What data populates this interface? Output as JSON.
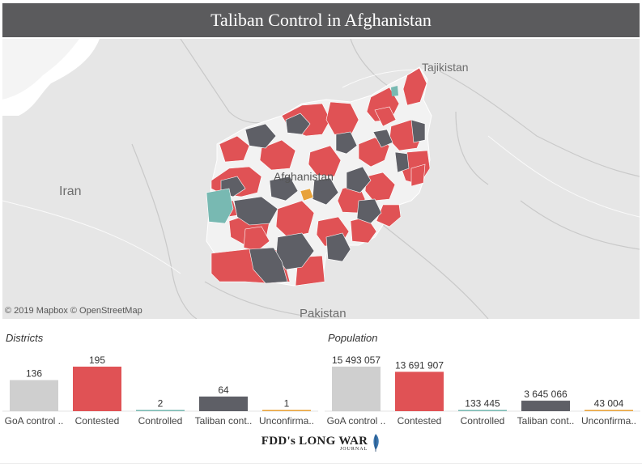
{
  "title": "Taliban Control in Afghanistan",
  "map": {
    "labels": {
      "tajikistan": "Tajikistan",
      "afghanistan": "Afghanistan",
      "iran": "Iran",
      "pakistan": "Pakistan"
    },
    "attribution": "© 2019 Mapbox  © OpenStreetMap"
  },
  "colors": {
    "goa": "#cfcfcf",
    "contested": "#e05255",
    "controlled": "#78b9b2",
    "taliban": "#5e5f66",
    "unconfirmed": "#e8a23a",
    "title_bg": "#5b5b5d"
  },
  "districts_label": "Districts",
  "population_label": "Population",
  "chart_data": [
    {
      "type": "bar",
      "title": "Districts",
      "categories": [
        "GoA control ..",
        "Contested",
        "Controlled",
        "Taliban cont..",
        "Unconfirma.."
      ],
      "values": [
        136,
        195,
        2,
        64,
        1
      ],
      "value_labels": [
        "136",
        "195",
        "2",
        "64",
        "1"
      ],
      "colors": [
        "#cfcfcf",
        "#e05255",
        "#78b9b2",
        "#5e5f66",
        "#e8a23a"
      ]
    },
    {
      "type": "bar",
      "title": "Population",
      "categories": [
        "GoA control ..",
        "Contested",
        "Controlled",
        "Taliban cont..",
        "Unconfirma.."
      ],
      "values": [
        15493057,
        13691907,
        133445,
        3645066,
        43004
      ],
      "value_labels": [
        "15 493 057",
        "13 691 907",
        "133 445",
        "3 645 066",
        "43 004"
      ],
      "colors": [
        "#cfcfcf",
        "#e05255",
        "#78b9b2",
        "#5e5f66",
        "#e8a23a"
      ]
    }
  ],
  "footer": {
    "logo_main": "FDD's LONG WAR",
    "logo_sub": "JOURNAL"
  }
}
